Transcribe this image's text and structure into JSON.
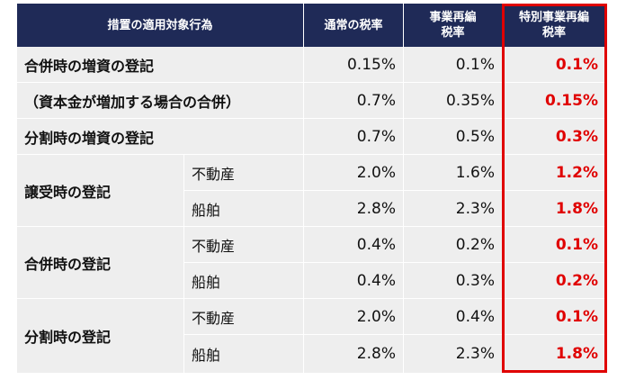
{
  "header": {
    "col1": "措置の適用対象行為",
    "col2": "通常の税率",
    "col3_line1": "事業再編",
    "col3_line2": "税率",
    "col4_line1": "特別事業再編",
    "col4_line2": "税率"
  },
  "rows": [
    {
      "label": "合併時の増資の登記",
      "normal": "0.15%",
      "reorg": "0.1%",
      "special": "0.1%"
    },
    {
      "label": "（資本金が増加する場合の合併）",
      "normal": "0.7%",
      "reorg": "0.35%",
      "special": "0.15%"
    },
    {
      "label": "分割時の増資の登記",
      "normal": "0.7%",
      "reorg": "0.5%",
      "special": "0.3%"
    },
    {
      "label": "譲受時の登記",
      "sub1": "不動産",
      "normal1": "2.0%",
      "reorg1": "1.6%",
      "special1": "1.2%",
      "sub2": "船舶",
      "normal2": "2.8%",
      "reorg2": "2.3%",
      "special2": "1.8%"
    },
    {
      "label": "合併時の登記",
      "sub1": "不動産",
      "normal1": "0.4%",
      "reorg1": "0.2%",
      "special1": "0.1%",
      "sub2": "船舶",
      "normal2": "0.4%",
      "reorg2": "0.3%",
      "special2": "0.2%"
    },
    {
      "label": "分割時の登記",
      "sub1": "不動産",
      "normal1": "2.0%",
      "reorg1": "0.4%",
      "special1": "0.1%",
      "sub2": "船舶",
      "normal2": "2.8%",
      "reorg2": "2.3%",
      "special2": "1.8%"
    }
  ],
  "colors": {
    "header_bg": "#1f2a57",
    "highlight": "#e00000",
    "row_bg": "#eeeeee"
  }
}
